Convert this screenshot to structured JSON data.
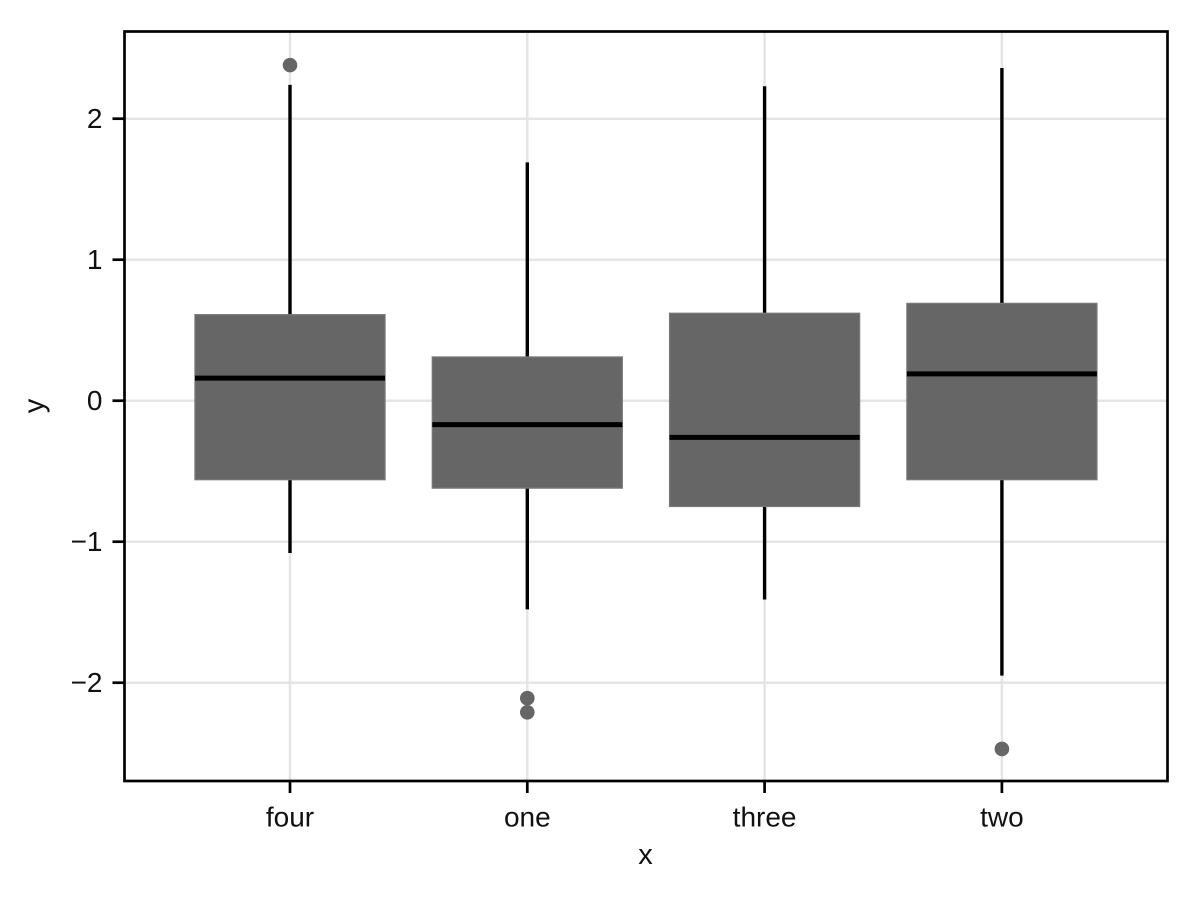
{
  "chart_data": {
    "type": "boxplot",
    "title": "",
    "xlabel": "x",
    "ylabel": "y",
    "categories": [
      "four",
      "one",
      "three",
      "two"
    ],
    "series": [
      {
        "category": "four",
        "whisker_low": -1.08,
        "q1": -0.56,
        "median": 0.16,
        "q3": 0.61,
        "whisker_high": 2.24,
        "outliers": [
          2.38
        ]
      },
      {
        "category": "one",
        "whisker_low": -1.48,
        "q1": -0.62,
        "median": -0.17,
        "q3": 0.31,
        "whisker_high": 1.69,
        "outliers": [
          -2.11,
          -2.21
        ]
      },
      {
        "category": "three",
        "whisker_low": -1.41,
        "q1": -0.75,
        "median": -0.26,
        "q3": 0.62,
        "whisker_high": 2.23,
        "outliers": []
      },
      {
        "category": "two",
        "whisker_low": -1.95,
        "q1": -0.56,
        "median": 0.19,
        "q3": 0.69,
        "whisker_high": 2.36,
        "outliers": [
          -2.47
        ]
      }
    ],
    "y_ticks": [
      2,
      1,
      0,
      -1,
      -2
    ],
    "y_tick_labels": [
      "2",
      "1",
      "0",
      "−1",
      "−2"
    ],
    "ylim": [
      -2.7,
      2.61
    ],
    "legend": "none",
    "grid": "major horizontal lines at integer y values; vertical lines at each category",
    "colors": {
      "box_fill": "#666666",
      "box_edge": "#777777",
      "whisker_and_median": "#000000",
      "outlier": "#666666",
      "gridline": "#e5e5e5",
      "panel_border": "#000000",
      "tick": "#000000",
      "text": "#111111",
      "background": "#ffffff"
    }
  }
}
